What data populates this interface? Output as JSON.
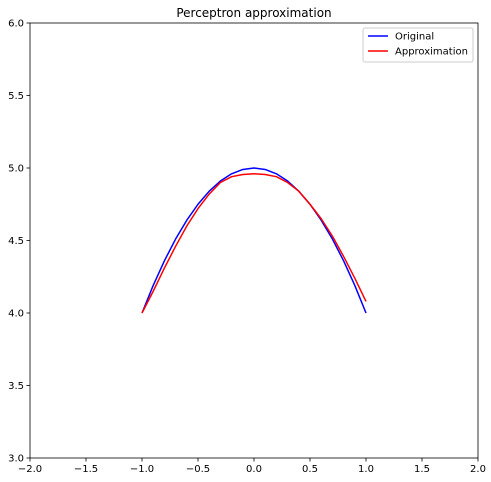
{
  "chart_data": {
    "type": "line",
    "title": "Perceptron approximation",
    "xlabel": "",
    "ylabel": "",
    "xlim": [
      -2.0,
      2.0
    ],
    "ylim": [
      3.0,
      6.0
    ],
    "x_ticks": [
      -2.0,
      -1.5,
      -1.0,
      -0.5,
      0.0,
      0.5,
      1.0,
      1.5,
      2.0
    ],
    "x_tick_labels": [
      "−2.0",
      "−1.5",
      "−1.0",
      "−0.5",
      "0.0",
      "0.5",
      "1.0",
      "1.5",
      "2.0"
    ],
    "y_ticks": [
      3.0,
      3.5,
      4.0,
      4.5,
      5.0,
      5.5,
      6.0
    ],
    "y_tick_labels": [
      "3.0",
      "3.5",
      "4.0",
      "4.5",
      "5.0",
      "5.5",
      "6.0"
    ],
    "grid": false,
    "legend_position": "top-right",
    "series": [
      {
        "name": "Original",
        "color": "#0000ff",
        "x": [
          -1.0,
          -0.9,
          -0.8,
          -0.7,
          -0.6,
          -0.5,
          -0.4,
          -0.3,
          -0.2,
          -0.1,
          0.0,
          0.1,
          0.2,
          0.3,
          0.4,
          0.5,
          0.6,
          0.7,
          0.8,
          0.9,
          1.0
        ],
        "y": [
          4.0,
          4.19,
          4.36,
          4.51,
          4.64,
          4.75,
          4.84,
          4.91,
          4.96,
          4.99,
          5.0,
          4.99,
          4.96,
          4.91,
          4.84,
          4.75,
          4.64,
          4.51,
          4.36,
          4.19,
          4.0
        ]
      },
      {
        "name": "Approximation",
        "color": "#ff0000",
        "x": [
          -1.0,
          -0.9,
          -0.8,
          -0.7,
          -0.6,
          -0.5,
          -0.4,
          -0.3,
          -0.2,
          -0.1,
          0.0,
          0.1,
          0.2,
          0.3,
          0.4,
          0.5,
          0.6,
          0.7,
          0.8,
          0.9,
          1.0
        ],
        "y": [
          4.0,
          4.15,
          4.31,
          4.46,
          4.6,
          4.72,
          4.82,
          4.9,
          4.94,
          4.955,
          4.96,
          4.955,
          4.94,
          4.9,
          4.84,
          4.75,
          4.65,
          4.53,
          4.39,
          4.24,
          4.08
        ]
      }
    ]
  }
}
